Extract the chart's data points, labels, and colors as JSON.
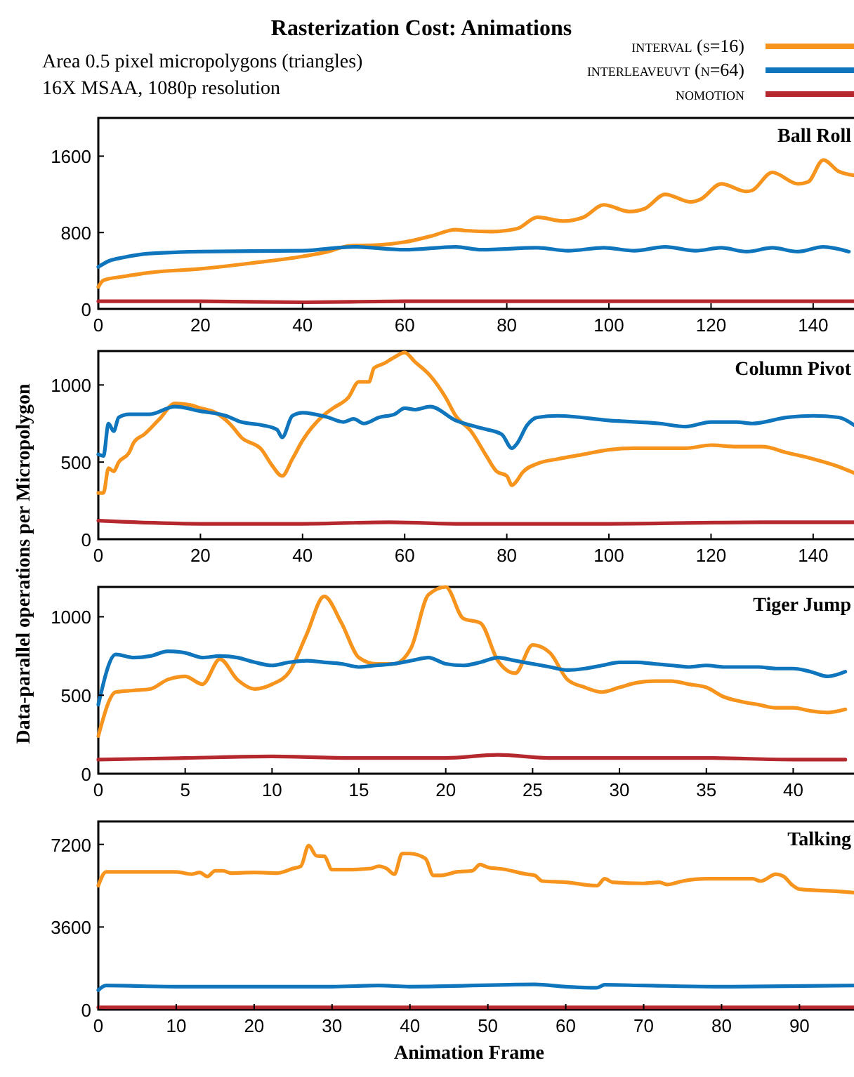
{
  "chart_data": [
    {
      "type": "line",
      "title": "Rasterization Cost: Animations",
      "subtitle": "Area 0.5 pixel micropolygons (triangles)\n16X MSAA, 1080p resolution",
      "legend": "top right",
      "annotations": [
        "Ball Roll"
      ],
      "xlim": [
        0,
        148
      ],
      "ylim": [
        0,
        2000
      ],
      "xticks": [
        0,
        20,
        40,
        60,
        80,
        100,
        120,
        140
      ],
      "yticks": [
        0,
        800,
        1600
      ],
      "series": [
        {
          "name": "interval (s=16)",
          "color": "#f7941d",
          "x": [
            0,
            1,
            5,
            10,
            20,
            30,
            40,
            45,
            49,
            55,
            60,
            65,
            70,
            72,
            77,
            82,
            86,
            91,
            95,
            99,
            104,
            107,
            111,
            116,
            118,
            122,
            127,
            128,
            132,
            137,
            139,
            142,
            145,
            148
          ],
          "values": [
            230,
            300,
            340,
            380,
            420,
            480,
            550,
            600,
            660,
            670,
            700,
            760,
            830,
            820,
            810,
            840,
            960,
            920,
            960,
            1090,
            1020,
            1050,
            1200,
            1120,
            1150,
            1310,
            1230,
            1240,
            1430,
            1310,
            1330,
            1560,
            1440,
            1400
          ]
        },
        {
          "name": "interleaveuvt (n=64)",
          "color": "#0f75bc",
          "x": [
            0,
            2,
            5,
            10,
            20,
            40,
            50,
            60,
            70,
            75,
            86,
            92,
            99,
            105,
            111,
            117,
            122,
            127,
            132,
            137,
            142,
            147
          ],
          "values": [
            440,
            500,
            540,
            580,
            600,
            610,
            650,
            620,
            650,
            620,
            640,
            610,
            640,
            610,
            650,
            610,
            640,
            600,
            640,
            600,
            650,
            600
          ]
        },
        {
          "name": "nomotion",
          "color": "#b5292e",
          "x": [
            0,
            20,
            40,
            60,
            80,
            100,
            120,
            140,
            148
          ],
          "values": [
            80,
            80,
            70,
            80,
            80,
            80,
            80,
            80,
            80
          ]
        }
      ]
    },
    {
      "type": "line",
      "ylabel": "Data-parallel operations per Micropolygon",
      "annotations": [
        "Column Pivot"
      ],
      "xlim": [
        0,
        148
      ],
      "ylim": [
        0,
        1220
      ],
      "xticks": [
        0,
        20,
        40,
        60,
        80,
        100,
        120,
        140
      ],
      "yticks": [
        0,
        500,
        1000
      ],
      "series": [
        {
          "color": "#f7941d",
          "x": [
            0,
            1,
            2,
            3,
            4,
            6,
            7,
            9,
            12,
            15,
            18,
            20,
            23,
            26,
            28,
            32,
            34,
            36,
            38,
            40,
            44,
            46,
            49,
            51,
            53,
            54,
            56,
            58,
            60,
            62,
            65,
            68,
            70,
            73,
            76,
            78,
            80,
            81,
            82,
            83,
            86,
            90,
            95,
            100,
            105,
            110,
            115,
            120,
            125,
            130,
            135,
            140,
            145,
            148
          ],
          "values": [
            300,
            300,
            460,
            440,
            500,
            560,
            630,
            680,
            780,
            880,
            870,
            850,
            820,
            740,
            660,
            580,
            480,
            410,
            520,
            640,
            800,
            850,
            920,
            1020,
            1020,
            1110,
            1140,
            1180,
            1210,
            1150,
            1060,
            920,
            800,
            700,
            540,
            440,
            410,
            350,
            380,
            430,
            490,
            520,
            550,
            580,
            590,
            590,
            590,
            610,
            600,
            600,
            560,
            520,
            470,
            430
          ]
        },
        {
          "color": "#0f75bc",
          "x": [
            0,
            1,
            2,
            3,
            4,
            6,
            10,
            15,
            20,
            25,
            28,
            32,
            35,
            36,
            38,
            40,
            45,
            48,
            50,
            52,
            55,
            58,
            60,
            62,
            65,
            70,
            75,
            79,
            81,
            82,
            84,
            86,
            90,
            100,
            110,
            115,
            120,
            125,
            128,
            135,
            140,
            145,
            148
          ],
          "values": [
            550,
            540,
            750,
            700,
            790,
            810,
            810,
            860,
            830,
            800,
            760,
            740,
            710,
            660,
            800,
            820,
            790,
            760,
            780,
            750,
            790,
            810,
            850,
            840,
            860,
            770,
            720,
            680,
            590,
            620,
            740,
            790,
            800,
            770,
            750,
            730,
            760,
            760,
            750,
            790,
            800,
            790,
            740
          ]
        },
        {
          "color": "#b5292e",
          "x": [
            0,
            20,
            40,
            57,
            70,
            100,
            130,
            148
          ],
          "values": [
            120,
            100,
            100,
            110,
            100,
            100,
            110,
            110
          ]
        }
      ]
    },
    {
      "type": "line",
      "annotations": [
        "Tiger Jump"
      ],
      "xlim": [
        0,
        43.5
      ],
      "ylim": [
        0,
        1190
      ],
      "xticks": [
        0,
        5,
        10,
        15,
        20,
        25,
        30,
        35,
        40
      ],
      "yticks": [
        0,
        500,
        1000
      ],
      "series": [
        {
          "color": "#f7941d",
          "x": [
            0,
            1,
            2,
            3,
            4,
            5,
            6,
            7,
            8,
            9,
            10,
            11,
            12,
            13,
            14,
            15,
            16,
            17,
            18,
            19,
            20,
            21,
            22,
            23,
            24,
            25,
            26,
            27,
            28,
            29,
            30,
            31,
            32,
            33,
            34,
            35,
            36,
            37,
            38,
            39,
            40,
            41,
            42,
            43
          ],
          "values": [
            240,
            520,
            530,
            540,
            600,
            620,
            570,
            730,
            600,
            540,
            570,
            650,
            890,
            1130,
            960,
            740,
            700,
            700,
            800,
            1140,
            1190,
            990,
            960,
            720,
            640,
            820,
            770,
            600,
            550,
            520,
            550,
            580,
            590,
            590,
            570,
            550,
            490,
            460,
            440,
            420,
            420,
            400,
            390,
            410
          ]
        },
        {
          "color": "#0f75bc",
          "x": [
            0,
            1,
            2,
            3,
            4,
            5,
            6,
            7,
            8,
            9,
            10,
            11,
            12,
            13,
            14,
            15,
            16,
            17,
            18,
            19,
            20,
            21,
            22,
            23,
            24,
            25,
            26,
            27,
            28,
            29,
            30,
            31,
            32,
            33,
            34,
            35,
            36,
            37,
            38,
            39,
            40,
            41,
            42,
            43
          ],
          "values": [
            440,
            760,
            740,
            750,
            780,
            770,
            740,
            750,
            740,
            710,
            690,
            710,
            720,
            710,
            700,
            680,
            690,
            700,
            720,
            740,
            700,
            690,
            710,
            740,
            720,
            700,
            680,
            660,
            670,
            690,
            710,
            710,
            700,
            690,
            680,
            690,
            680,
            680,
            680,
            670,
            670,
            650,
            620,
            650
          ]
        },
        {
          "color": "#b5292e",
          "x": [
            0,
            5,
            10,
            15,
            20,
            23,
            26,
            30,
            35,
            40,
            43
          ],
          "values": [
            90,
            100,
            110,
            100,
            100,
            120,
            100,
            100,
            100,
            90,
            90
          ]
        }
      ]
    },
    {
      "type": "line",
      "xlabel": "Animation Frame",
      "annotations": [
        "Talking"
      ],
      "xlim": [
        0,
        97
      ],
      "ylim": [
        0,
        8200
      ],
      "xticks": [
        0,
        10,
        20,
        30,
        40,
        50,
        60,
        70,
        80,
        90
      ],
      "yticks": [
        0,
        3600,
        7200
      ],
      "series": [
        {
          "color": "#f7941d",
          "x": [
            0,
            1,
            5,
            10,
            12,
            13,
            14,
            15,
            16,
            17,
            20,
            23,
            25,
            26,
            27,
            28,
            29,
            30,
            32,
            35,
            36,
            37,
            38,
            39,
            40,
            42,
            43,
            44,
            46,
            48,
            49,
            50,
            52,
            55,
            56,
            57,
            60,
            64,
            65,
            66,
            70,
            72,
            73,
            75,
            78,
            82,
            84,
            85,
            87,
            88,
            89,
            90,
            95,
            97
          ],
          "values": [
            5400,
            6000,
            6000,
            6000,
            5900,
            5980,
            5800,
            6050,
            6050,
            5950,
            5980,
            5950,
            6150,
            6250,
            7150,
            6700,
            6680,
            6100,
            6100,
            6150,
            6250,
            6150,
            5900,
            6800,
            6800,
            6580,
            5850,
            5850,
            6000,
            6050,
            6320,
            6200,
            6120,
            5900,
            5850,
            5600,
            5550,
            5400,
            5700,
            5550,
            5500,
            5550,
            5450,
            5600,
            5700,
            5700,
            5700,
            5600,
            5900,
            5800,
            5450,
            5250,
            5150,
            5100
          ]
        },
        {
          "color": "#0f75bc",
          "x": [
            0,
            1,
            10,
            20,
            30,
            36,
            40,
            56,
            60,
            64,
            65,
            70,
            80,
            97
          ],
          "values": [
            850,
            1050,
            1000,
            1000,
            1000,
            1050,
            1000,
            1100,
            1000,
            950,
            1080,
            1050,
            1000,
            1050
          ]
        },
        {
          "color": "#b5292e",
          "x": [
            0,
            30,
            60,
            97
          ],
          "values": [
            100,
            100,
            100,
            100
          ]
        }
      ]
    }
  ]
}
